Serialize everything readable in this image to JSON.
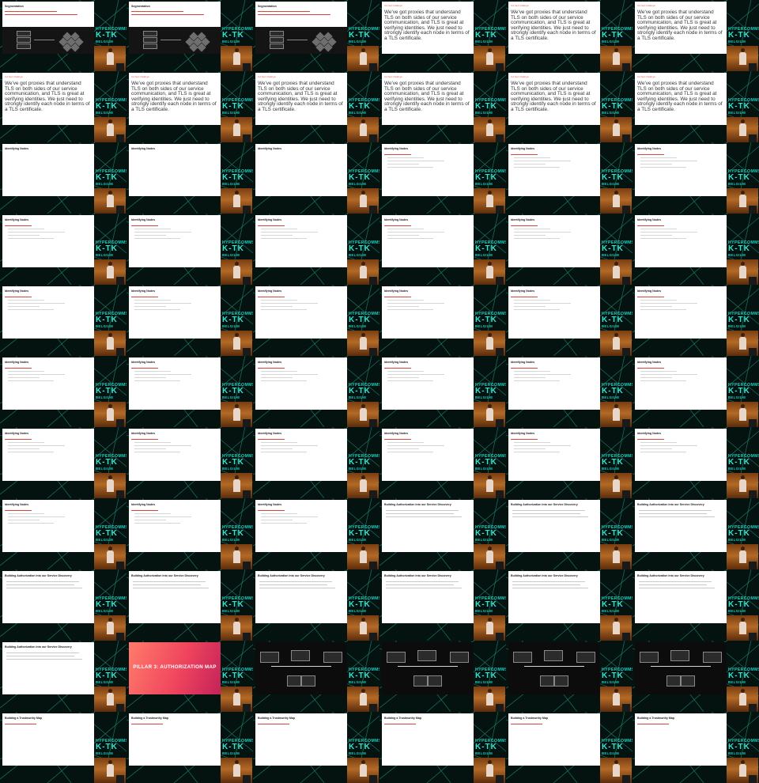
{
  "contact_sheet": {
    "columns": 6,
    "rows": 11,
    "frames": [
      {
        "type": "seg",
        "title": "Segmentation"
      },
      {
        "type": "seg",
        "title": "Segmentation"
      },
      {
        "type": "seg",
        "title": "Segmentation"
      },
      {
        "type": "big",
        "kicker": "Our Next Challenge",
        "text": "We've got proxies that understand TLS on both sides of our service communication, and TLS is great at verifying identities. We just need to strongly identify each node in terms of a TLS certificate."
      },
      {
        "type": "big",
        "kicker": "Our Next Challenge",
        "text": "We've got proxies that understand TLS on both sides of our service communication, and TLS is great at verifying identities. We just need to strongly identify each node in terms of a TLS certificate."
      },
      {
        "type": "big",
        "kicker": "Our Next Challenge",
        "text": "We've got proxies that understand TLS on both sides of our service communication, and TLS is great at verifying identities. We just need to strongly identify each node in terms of a TLS certificate."
      },
      {
        "type": "big",
        "kicker": "Our Next Challenge",
        "text": "We've got proxies that understand TLS on both sides of our service communication, and TLS is great at verifying identities. We just need to strongly identify each node in terms of a TLS certificate."
      },
      {
        "type": "big",
        "kicker": "Our Next Challenge",
        "text": "We've got proxies that understand TLS on both sides of our service communication, and TLS is great at verifying identities. We just need to strongly identify each node in terms of a TLS certificate."
      },
      {
        "type": "big",
        "kicker": "Our Next Challenge",
        "text": "We've got proxies that understand TLS on both sides of our service communication, and TLS is great at verifying identities. We just need to strongly identify each node in terms of a TLS certificate."
      },
      {
        "type": "big",
        "kicker": "Our Next Challenge",
        "text": "We've got proxies that understand TLS on both sides of our service communication, and TLS is great at verifying identities. We just need to strongly identify each node in terms of a TLS certificate."
      },
      {
        "type": "big",
        "kicker": "Our Next Challenge",
        "text": "We've got proxies that understand TLS on both sides of our service communication, and TLS is great at verifying identities. We just need to strongly identify each node in terms of a TLS certificate."
      },
      {
        "type": "big",
        "kicker": "Our Next Challenge",
        "text": "We've got proxies that understand TLS on both sides of our service communication, and TLS is great at verifying identities. We just need to strongly identify each node in terms of a TLS certificate."
      },
      {
        "type": "blank",
        "title": "Identifying Nodes"
      },
      {
        "type": "blank",
        "title": "Identifying Nodes"
      },
      {
        "type": "blank",
        "title": "Identifying Nodes"
      },
      {
        "type": "bullets",
        "title": "Identifying Nodes",
        "bullets": 1
      },
      {
        "type": "bullets",
        "title": "Identifying Nodes",
        "bullets": 1
      },
      {
        "type": "bullets",
        "title": "Identifying Nodes",
        "bullets": 1
      },
      {
        "type": "bullets",
        "title": "Identifying Nodes",
        "bullets": 1
      },
      {
        "type": "bullets",
        "title": "Identifying Nodes",
        "bullets": 1
      },
      {
        "type": "bullets",
        "title": "Identifying Nodes",
        "bullets": 1
      },
      {
        "type": "bullets",
        "title": "Identifying Nodes",
        "bullets": 1
      },
      {
        "type": "bullets",
        "title": "Identifying Nodes",
        "bullets": 1
      },
      {
        "type": "bullets",
        "title": "Identifying Nodes",
        "bullets": 1
      },
      {
        "type": "bullets",
        "title": "Identifying Nodes",
        "bullets": 1
      },
      {
        "type": "bullets",
        "title": "Identifying Nodes",
        "bullets": 1
      },
      {
        "type": "bullets",
        "title": "Identifying Nodes",
        "bullets": 1
      },
      {
        "type": "bullets",
        "title": "Identifying Nodes",
        "bullets": 1
      },
      {
        "type": "bullets",
        "title": "Identifying Nodes",
        "bullets": 1
      },
      {
        "type": "bullets",
        "title": "Identifying Nodes",
        "bullets": 1
      },
      {
        "type": "bullets",
        "title": "Identifying Nodes",
        "bullets": 1
      },
      {
        "type": "bullets",
        "title": "Identifying Nodes",
        "bullets": 1
      },
      {
        "type": "bullets",
        "title": "Identifying Nodes",
        "bullets": 1
      },
      {
        "type": "bullets",
        "title": "Identifying Nodes",
        "bullets": 1
      },
      {
        "type": "bullets",
        "title": "Identifying Nodes",
        "bullets": 1
      },
      {
        "type": "bullets",
        "title": "Identifying Nodes",
        "bullets": 1
      },
      {
        "type": "bullets",
        "title": "Identifying Nodes",
        "bullets": 1
      },
      {
        "type": "bullets",
        "title": "Identifying Nodes",
        "bullets": 1
      },
      {
        "type": "bullets",
        "title": "Identifying Nodes",
        "bullets": 1
      },
      {
        "type": "bullets",
        "title": "Identifying Nodes",
        "bullets": 1
      },
      {
        "type": "bullets",
        "title": "Identifying Nodes",
        "bullets": 1
      },
      {
        "type": "bullets",
        "title": "Identifying Nodes",
        "bullets": 1
      },
      {
        "type": "bullets",
        "title": "Identifying Nodes",
        "bullets": 1
      },
      {
        "type": "bullets",
        "title": "Identifying Nodes",
        "bullets": 1
      },
      {
        "type": "bullets",
        "title": "Identifying Nodes",
        "bullets": 1
      },
      {
        "type": "auth",
        "title": "Building Authorization into our Service Discovery"
      },
      {
        "type": "auth",
        "title": "Building Authorization into our Service Discovery"
      },
      {
        "type": "auth",
        "title": "Building Authorization into our Service Discovery"
      },
      {
        "type": "auth",
        "title": "Building Authorization into our Service Discovery"
      },
      {
        "type": "auth",
        "title": "Building Authorization into our Service Discovery"
      },
      {
        "type": "auth",
        "title": "Building Authorization into our Service Discovery"
      },
      {
        "type": "auth",
        "title": "Building Authorization into our Service Discovery"
      },
      {
        "type": "auth",
        "title": "Building Authorization into our Service Discovery"
      },
      {
        "type": "auth",
        "title": "Building Authorization into our Service Discovery"
      },
      {
        "type": "auth",
        "title": "Building Authorization into our Service Discovery"
      },
      {
        "type": "pillar",
        "title": "PILLAR 3: AUTHORIZATION MAP"
      },
      {
        "type": "diagram"
      },
      {
        "type": "diagram"
      },
      {
        "type": "diagram"
      },
      {
        "type": "diagram"
      },
      {
        "type": "map",
        "title": "Building a Trustworthy Map"
      },
      {
        "type": "map",
        "title": "Building a Trustworthy Map"
      },
      {
        "type": "map",
        "title": "Building a Trustworthy Map"
      },
      {
        "type": "map",
        "title": "Building a Trustworthy Map"
      },
      {
        "type": "map",
        "title": "Building a Trustworthy Map"
      },
      {
        "type": "map",
        "title": "Building a Trustworthy Map"
      }
    ],
    "logo": {
      "line1": "HYPERCOMMS",
      "line2": "K-TK",
      "line3": "BELGIUM"
    }
  },
  "colors": {
    "accent": "#d9463c",
    "logo": "#2fe6d0",
    "bg": "#041210"
  }
}
